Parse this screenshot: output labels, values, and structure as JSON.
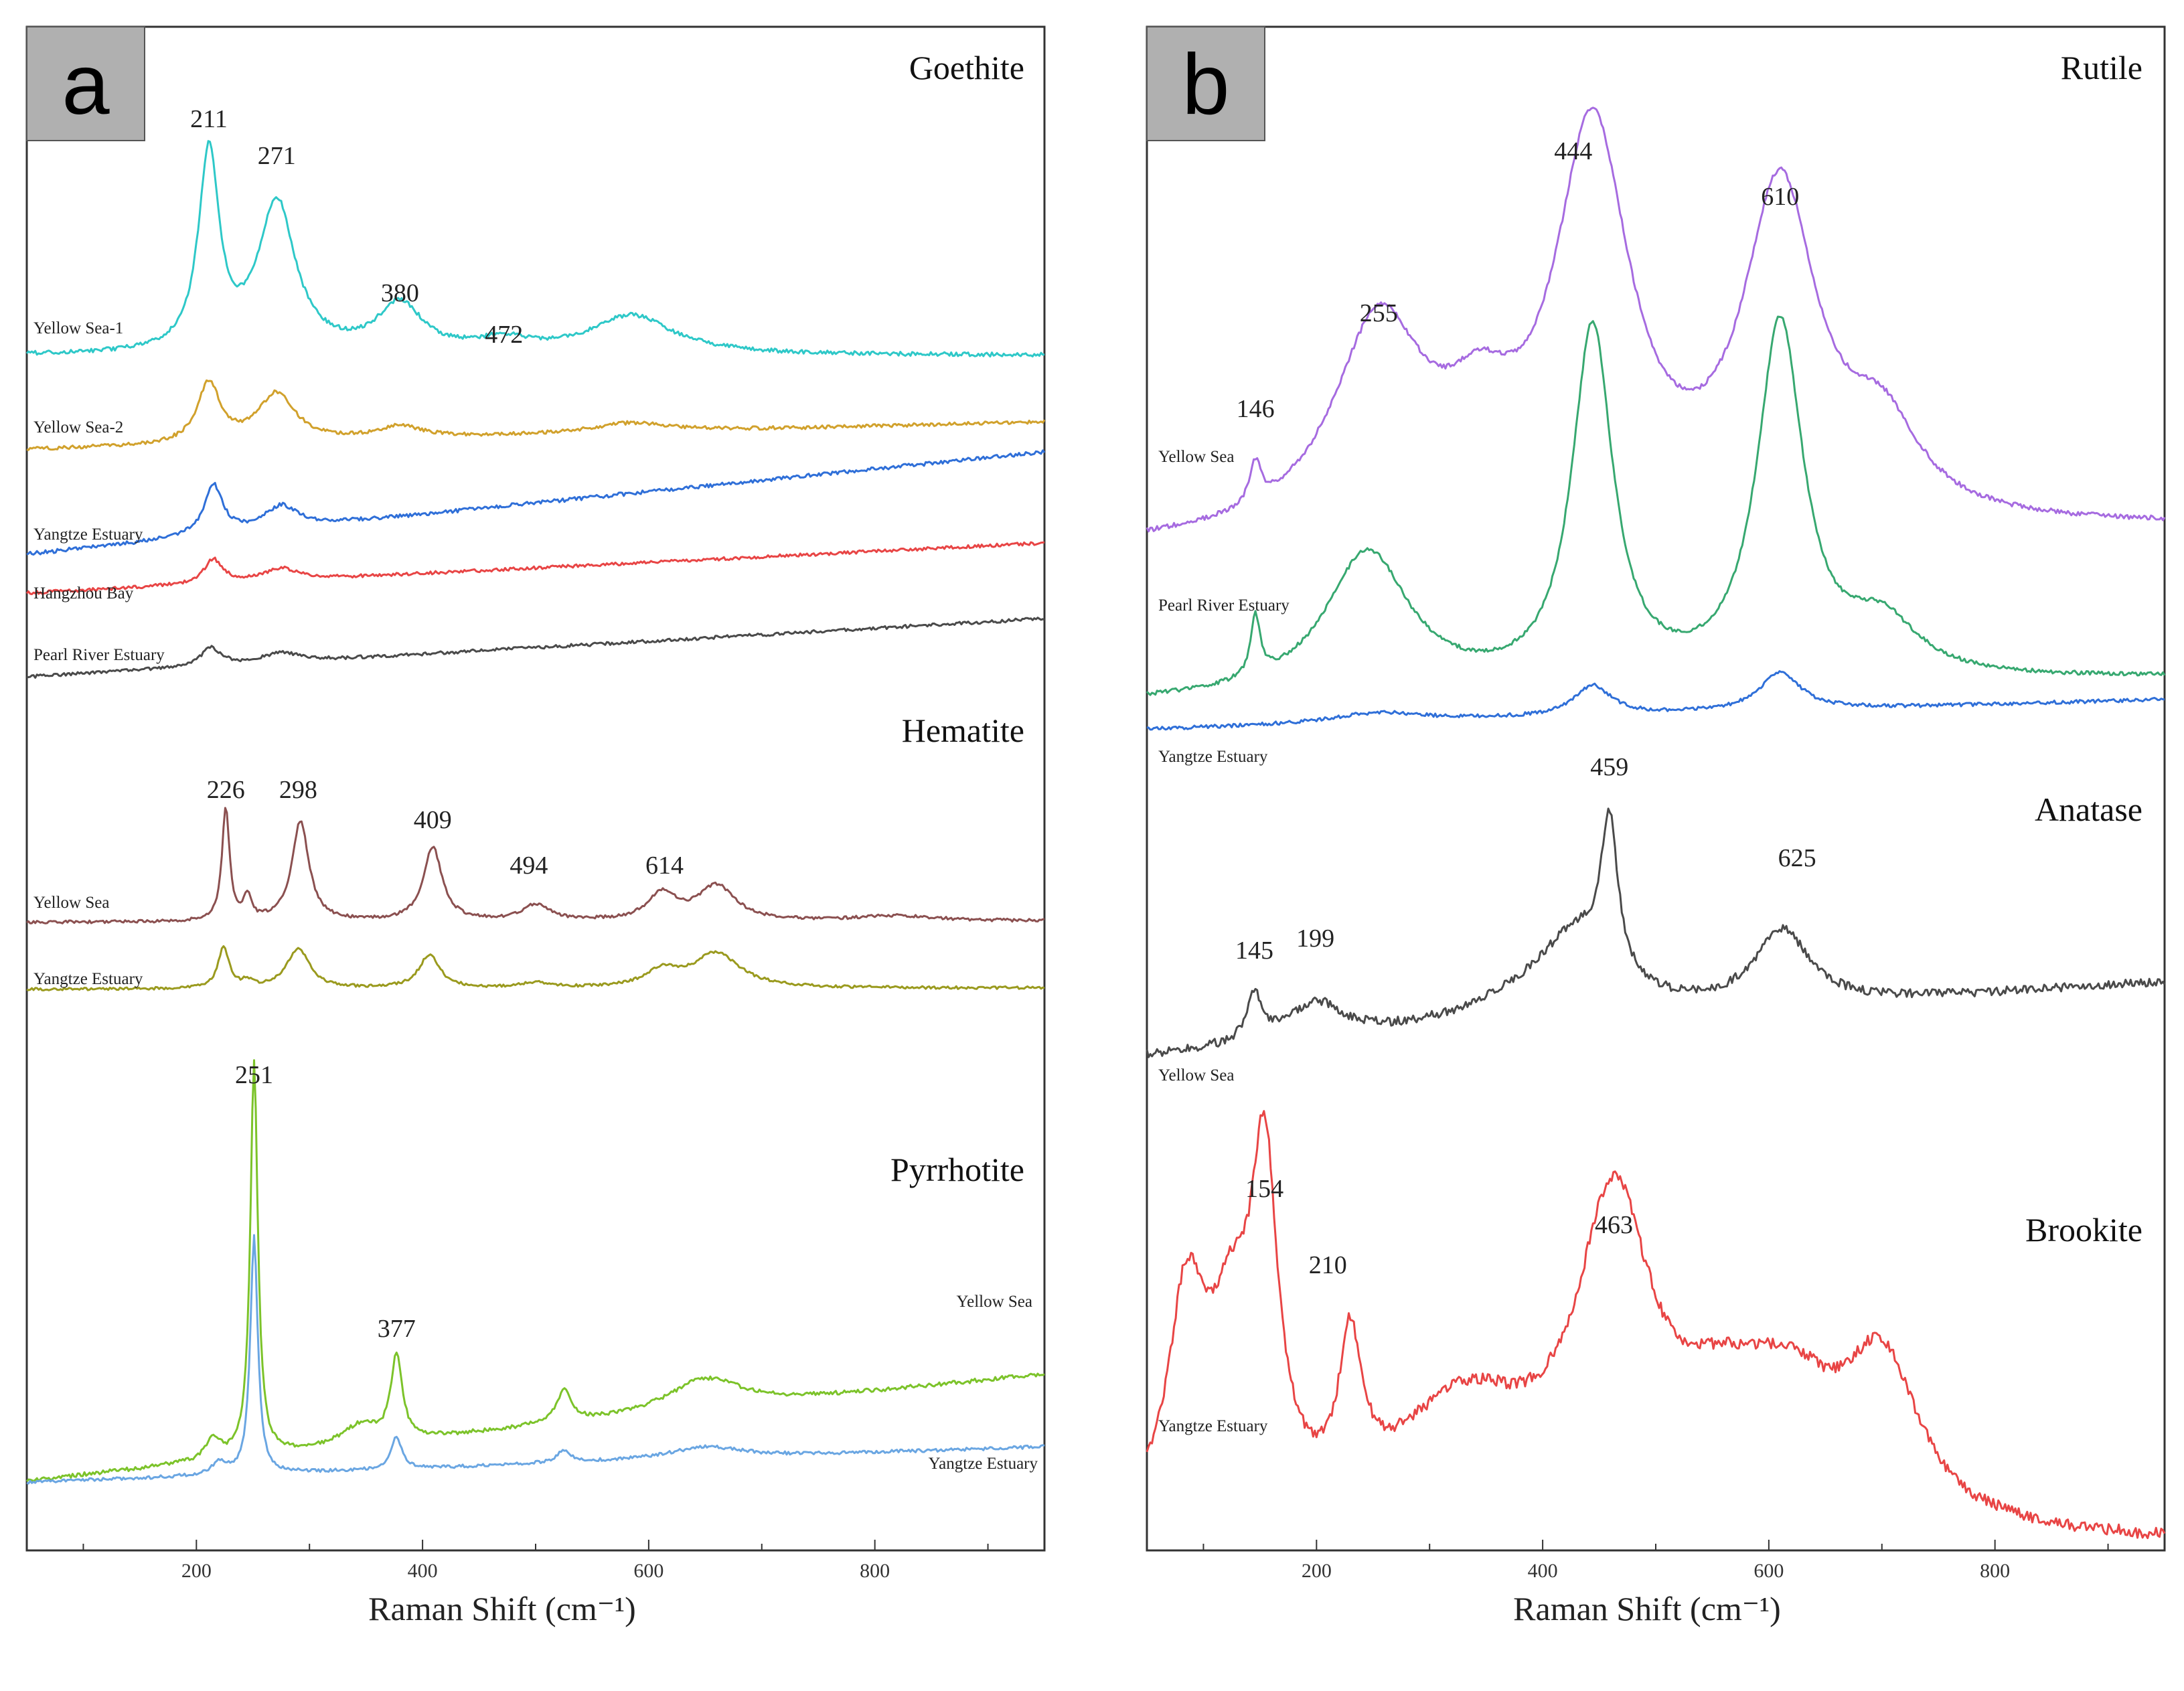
{
  "chart_data": [
    {
      "type": "line",
      "panel_letter": "a",
      "xlabel": "Raman Shift (cm⁻¹)",
      "xlim": [
        50,
        950
      ],
      "xticks": [
        200,
        400,
        600,
        800
      ],
      "xtick_labels": [
        "200",
        "400",
        "600",
        "800"
      ],
      "groups": [
        {
          "mineral": "Goethite",
          "peaks": [
            211,
            271,
            380,
            472
          ],
          "series": [
            {
              "name": "Yellow Sea-1",
              "color": "#2ec8c8",
              "baseline": [
                0.08,
                0.08
              ],
              "peaks": [
                [
                  211,
                  0.82,
                  11
                ],
                [
                  271,
                  0.62,
                  20
                ],
                [
                  380,
                  0.2,
                  24
                ],
                [
                  472,
                  0.05,
                  30
                ],
                [
                  585,
                  0.16,
                  45
                ]
              ]
            },
            {
              "name": "Yellow Sea-2",
              "color": "#d1a12c",
              "baseline": [
                0.06,
                0.2
              ],
              "peaks": [
                [
                  211,
                  0.3,
                  12
                ],
                [
                  271,
                  0.24,
                  20
                ],
                [
                  380,
                  0.06,
                  25
                ],
                [
                  585,
                  0.05,
                  45
                ]
              ]
            },
            {
              "name": "Yangtze Estuary",
              "color": "#2f6fd8",
              "baseline": [
                0.05,
                0.5
              ],
              "peaks": [
                [
                  215,
                  0.22,
                  10
                ],
                [
                  275,
                  0.1,
                  18
                ]
              ]
            },
            {
              "name": "Hangzhou Bay",
              "color": "#e84545",
              "baseline": [
                0.03,
                0.28
              ],
              "peaks": [
                [
                  215,
                  0.12,
                  10
                ],
                [
                  275,
                  0.06,
                  18
                ]
              ]
            },
            {
              "name": "Pearl River Estuary",
              "color": "#4a4a4a",
              "baseline": [
                0.03,
                0.32
              ],
              "peaks": [
                [
                  213,
                  0.09,
                  11
                ],
                [
                  275,
                  0.05,
                  18
                ]
              ]
            }
          ]
        },
        {
          "mineral": "Hematite",
          "peaks": [
            226,
            298,
            409,
            494,
            614
          ],
          "series": [
            {
              "name": "Yellow Sea",
              "color": "#8b5050",
              "baseline": [
                0.02,
                0.03
              ],
              "peaks": [
                [
                  226,
                  0.85,
                  4
                ],
                [
                  245,
                  0.18,
                  4
                ],
                [
                  292,
                  0.75,
                  9
                ],
                [
                  409,
                  0.55,
                  10
                ],
                [
                  500,
                  0.12,
                  15
                ],
                [
                  612,
                  0.2,
                  15
                ],
                [
                  660,
                  0.26,
                  20
                ],
                [
                  820,
                  0.04,
                  40
                ]
              ]
            },
            {
              "name": "Yangtze Estuary",
              "color": "#9a9a1e",
              "baseline": [
                0.02,
                0.03
              ],
              "peaks": [
                [
                  224,
                  0.3,
                  6
                ],
                [
                  245,
                  0.05,
                  5
                ],
                [
                  290,
                  0.3,
                  12
                ],
                [
                  406,
                  0.25,
                  11
                ],
                [
                  500,
                  0.04,
                  15
                ],
                [
                  612,
                  0.12,
                  18
                ],
                [
                  660,
                  0.26,
                  25
                ]
              ]
            }
          ]
        },
        {
          "mineral": "Pyrrhotite",
          "peaks": [
            251,
            377
          ],
          "series": [
            {
              "name": "Yellow Sea",
              "color": "#7cc32a",
              "baseline": [
                0.03,
                0.3
              ],
              "peaks": [
                [
                  251,
                  1.0,
                  4
                ],
                [
                  215,
                  0.05,
                  8
                ],
                [
                  377,
                  0.21,
                  6
                ],
                [
                  345,
                  0.05,
                  20
                ],
                [
                  525,
                  0.08,
                  8
                ],
                [
                  650,
                  0.08,
                  40
                ]
              ]
            },
            {
              "name": "Yangtze Estuary",
              "color": "#6aa6e2",
              "baseline": [
                0.03,
                0.12
              ],
              "peaks": [
                [
                  251,
                  0.6,
                  4
                ],
                [
                  220,
                  0.03,
                  8
                ],
                [
                  377,
                  0.08,
                  6
                ],
                [
                  525,
                  0.03,
                  8
                ],
                [
                  650,
                  0.03,
                  40
                ]
              ]
            }
          ]
        }
      ]
    },
    {
      "type": "line",
      "panel_letter": "b",
      "xlabel": "Raman Shift (cm⁻¹)",
      "xlim": [
        50,
        950
      ],
      "xticks": [
        200,
        400,
        600,
        800
      ],
      "xtick_labels": [
        "200",
        "400",
        "600",
        "800"
      ],
      "groups": [
        {
          "mineral": "Rutile",
          "peaks": [
            146,
            255,
            444,
            610
          ],
          "series": [
            {
              "name": "Yellow Sea",
              "color": "#a66be0",
              "baseline": [
                0.0,
                0.05
              ],
              "peaks": [
                [
                  146,
                  0.1,
                  6
                ],
                [
                  255,
                  0.5,
                  50
                ],
                [
                  444,
                  0.95,
                  40
                ],
                [
                  610,
                  0.8,
                  40
                ],
                [
                  700,
                  0.2,
                  40
                ],
                [
                  345,
                  0.2,
                  40
                ]
              ]
            },
            {
              "name": "Pearl River Estuary",
              "color": "#37a870",
              "baseline": [
                0.0,
                0.07
              ],
              "peaks": [
                [
                  146,
                  0.17,
                  5
                ],
                [
                  245,
                  0.4,
                  45
                ],
                [
                  444,
                  1.0,
                  22
                ],
                [
                  610,
                  1.0,
                  25
                ],
                [
                  700,
                  0.15,
                  40
                ]
              ]
            },
            {
              "name": "Yangtze Estuary",
              "color": "#2f6fd8",
              "baseline": [
                0.0,
                0.3
              ],
              "peaks": [
                [
                  255,
                  0.1,
                  50
                ],
                [
                  444,
                  0.3,
                  20
                ],
                [
                  610,
                  0.38,
                  22
                ]
              ]
            }
          ]
        },
        {
          "mineral": "Anatase",
          "peaks": [
            145,
            199,
            459,
            625
          ],
          "series": [
            {
              "name": "Yellow Sea",
              "color": "#4a4a4a",
              "baseline": [
                0.0,
                0.4
              ],
              "peaks": [
                [
                  145,
                  0.25,
                  8
                ],
                [
                  199,
                  0.2,
                  30
                ],
                [
                  459,
                  0.8,
                  9
                ],
                [
                  430,
                  0.35,
                  40
                ],
                [
                  612,
                  0.4,
                  30
                ],
                [
                  400,
                  0.15,
                  80
                ]
              ]
            }
          ]
        },
        {
          "mineral": "Brookite",
          "peaks": [
            154,
            210,
            463
          ],
          "series": [
            {
              "name": "Yangtze Estuary",
              "color": "#e84545",
              "baseline": [
                0.0,
                0.0
              ],
              "peaks": [
                [
                  85,
                  0.55,
                  20
                ],
                [
                  154,
                  0.82,
                  14
                ],
                [
                  125,
                  0.45,
                  25
                ],
                [
                  230,
                  0.38,
                  12
                ],
                [
                  330,
                  0.32,
                  80
                ],
                [
                  463,
                  0.78,
                  40
                ],
                [
                  560,
                  0.25,
                  60
                ],
                [
                  700,
                  0.4,
                  40
                ],
                [
                  620,
                  0.25,
                  50
                ]
              ]
            }
          ]
        }
      ]
    }
  ],
  "figure": {
    "panel_a": {
      "letter": "a",
      "xlabel": "Raman Shift (cm⁻¹)"
    },
    "panel_b": {
      "letter": "b",
      "xlabel": "Raman Shift (cm⁻¹)"
    }
  }
}
